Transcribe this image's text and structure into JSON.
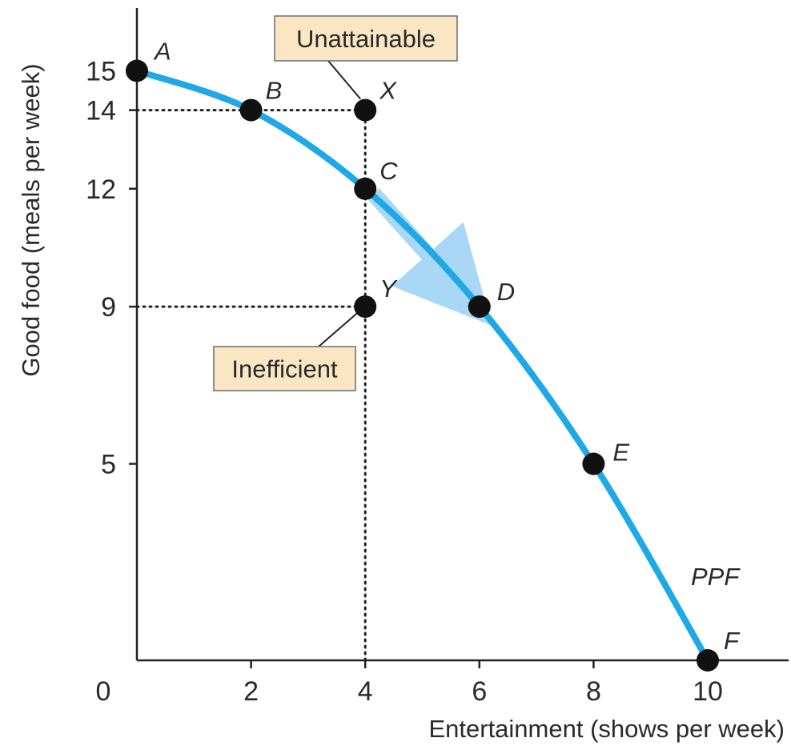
{
  "chart_data": {
    "type": "line",
    "title": "",
    "xlabel": "Entertainment (shows per week)",
    "ylabel": "Good food (meals per week)",
    "xlim": [
      0,
      11.3
    ],
    "ylim": [
      0,
      16.2
    ],
    "x_ticks": [
      0,
      2,
      4,
      6,
      8,
      10
    ],
    "y_ticks": [
      5,
      9,
      12,
      14,
      15
    ],
    "x_tick_labels": [
      "0",
      "2",
      "4",
      "6",
      "8",
      "10"
    ],
    "y_tick_labels": [
      "5",
      "9",
      "12",
      "14",
      "15"
    ],
    "grid": false,
    "curve_color": "#1ea8e6",
    "arrow_color": "#a8d8f5",
    "point_color": "#111111",
    "series": [
      {
        "name": "PPF",
        "points": [
          {
            "label": "A",
            "x": 0,
            "y": 15
          },
          {
            "label": "B",
            "x": 2,
            "y": 14
          },
          {
            "label": "C",
            "x": 4,
            "y": 12
          },
          {
            "label": "D",
            "x": 6,
            "y": 9
          },
          {
            "label": "E",
            "x": 8,
            "y": 5
          },
          {
            "label": "F",
            "x": 10,
            "y": 0
          }
        ]
      }
    ],
    "extra_points": [
      {
        "label": "X",
        "x": 4,
        "y": 14
      },
      {
        "label": "Y",
        "x": 4,
        "y": 9
      }
    ],
    "guides": [
      {
        "from": [
          0,
          14
        ],
        "to": [
          4,
          14
        ]
      },
      {
        "from": [
          0,
          9
        ],
        "to": [
          4,
          9
        ]
      },
      {
        "from": [
          4,
          0
        ],
        "to": [
          4,
          14
        ]
      }
    ],
    "arrow": {
      "from": [
        4,
        12
      ],
      "to": [
        6,
        9
      ]
    },
    "annotations": [
      {
        "text": "Unattainable",
        "points_to": "X"
      },
      {
        "text": "Inefficient",
        "points_to": "Y"
      },
      {
        "text": "PPF",
        "refers_to": "curve"
      }
    ]
  }
}
